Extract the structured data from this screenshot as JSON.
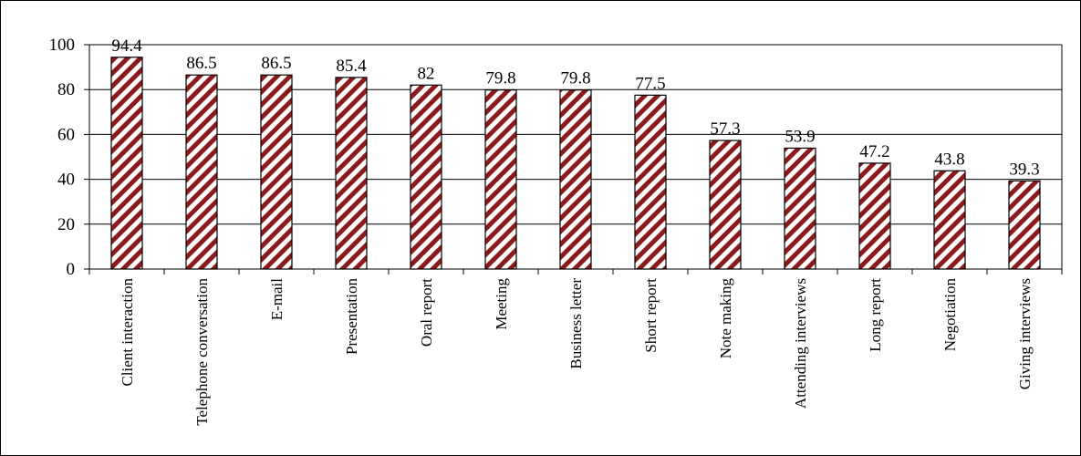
{
  "chart_data": {
    "type": "bar",
    "categories": [
      "Client interaction",
      "Telephone conversation",
      "E-mail",
      "Presentation",
      "Oral report",
      "Meeting",
      "Business letter",
      "Short report",
      "Note making",
      "Attending interviews",
      "Long report",
      "Negotiation",
      "Giving interviews"
    ],
    "values": [
      94.4,
      86.5,
      86.5,
      85.4,
      82,
      79.8,
      79.8,
      77.5,
      57.3,
      53.9,
      47.2,
      43.8,
      39.3
    ],
    "data_labels": [
      "94.4",
      "86.5",
      "86.5",
      "85.4",
      "82",
      "79.8",
      "79.8",
      "77.5",
      "57.3",
      "53.9",
      "47.2",
      "43.8",
      "39.3"
    ],
    "yticks": [
      "0",
      "20",
      "40",
      "60",
      "80",
      "100"
    ],
    "ylim": [
      0,
      100
    ],
    "grid": true,
    "colors": {
      "bar_stripe": "#8b1a1a",
      "bar_background": "#ffffff",
      "bar_outline": "#000000",
      "gridline": "#000000"
    }
  }
}
